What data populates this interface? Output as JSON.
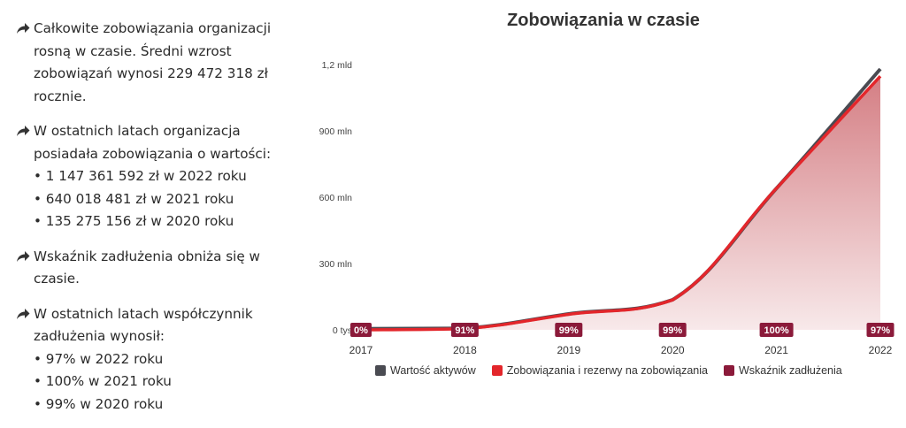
{
  "summary": {
    "b1": "Całkowite zobowiązania organizacji rosną w czasie. Średni wzrost zobowiązań wynosi 229 472 318 zł rocznie.",
    "b2_intro": "W ostatnich latach organizacja posiadała zobowiązania o wartości:",
    "b2_items": [
      "• 1 147 361 592 zł w 2022 roku",
      "• 640 018 481 zł w 2021 roku",
      "• 135 275 156 zł w 2020 roku"
    ],
    "b3": "Wskaźnik zadłużenia obniża się w czasie.",
    "b4_intro": "W ostatnich latach współczynnik zadłużenia wynosił:",
    "b4_items": [
      "• 97% w 2022 roku",
      "• 100% w 2021 roku",
      "• 99% w 2020 roku"
    ]
  },
  "colors": {
    "assets": "#4a4b52",
    "liabilities": "#e3262b",
    "ratio": "#8b1a3a",
    "area": "#c2474f",
    "arrow": "#333333"
  },
  "chart_data": {
    "type": "area",
    "title": "Zobowiązania w czasie",
    "x": [
      "2017",
      "2018",
      "2019",
      "2020",
      "2021",
      "2022"
    ],
    "ylim": [
      0,
      1200000000
    ],
    "yticks": [
      0,
      300000000,
      600000000,
      900000000,
      1200000000
    ],
    "ytick_labels": [
      "0 tys",
      "300 mln",
      "600 mln",
      "900 mln",
      "1,2 mld"
    ],
    "series": [
      {
        "name": "Wartość aktywów",
        "values": [
          5000000,
          7000000,
          72000000,
          136000000,
          640000000,
          1180000000
        ]
      },
      {
        "name": "Zobowiązania i rezerwy na zobowiązania",
        "values": [
          0,
          5000000,
          70000000,
          135275156,
          640018481,
          1147361592
        ]
      },
      {
        "name": "Wskaźnik zadłużenia",
        "labels": [
          "0%",
          "91%",
          "99%",
          "99%",
          "100%",
          "97%"
        ]
      }
    ],
    "legend": "bottom",
    "grid": false
  }
}
